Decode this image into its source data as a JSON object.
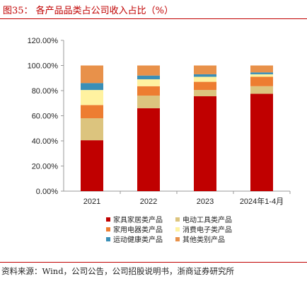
{
  "title": "图35：  各产品品类占公司收入占比（%）",
  "source": "资料来源：Wind，公司公告，公司招股说明书，浙商证券研究所",
  "chart_data": {
    "type": "bar",
    "stacked": true,
    "categories": [
      "2021",
      "2022",
      "2023",
      "2024年1-4月"
    ],
    "ylim": [
      0,
      120
    ],
    "yticks": [
      "0.00%",
      "20.00%",
      "40.00%",
      "60.00%",
      "80.00%",
      "100.00%",
      "120.00%"
    ],
    "grid": false,
    "legend_position": "bottom",
    "series": [
      {
        "name": "家具家居类产品",
        "color": "#c00000",
        "values": [
          40.5,
          66.0,
          75.5,
          77.5
        ]
      },
      {
        "name": "电动工具类产品",
        "color": "#dcc47e",
        "values": [
          17.5,
          10.0,
          5.0,
          6.0
        ]
      },
      {
        "name": "家用电器类产品",
        "color": "#ed7d31",
        "values": [
          10.5,
          7.5,
          6.5,
          7.5
        ]
      },
      {
        "name": "消费电子类产品",
        "color": "#fff2a0",
        "values": [
          12.0,
          5.5,
          4.0,
          2.0
        ]
      },
      {
        "name": "运动健康类产品",
        "color": "#3a8fb7",
        "values": [
          5.5,
          3.0,
          2.0,
          1.5
        ]
      },
      {
        "name": "其他类别产品",
        "color": "#e8914a",
        "values": [
          14.0,
          8.0,
          7.0,
          5.5
        ]
      }
    ]
  }
}
